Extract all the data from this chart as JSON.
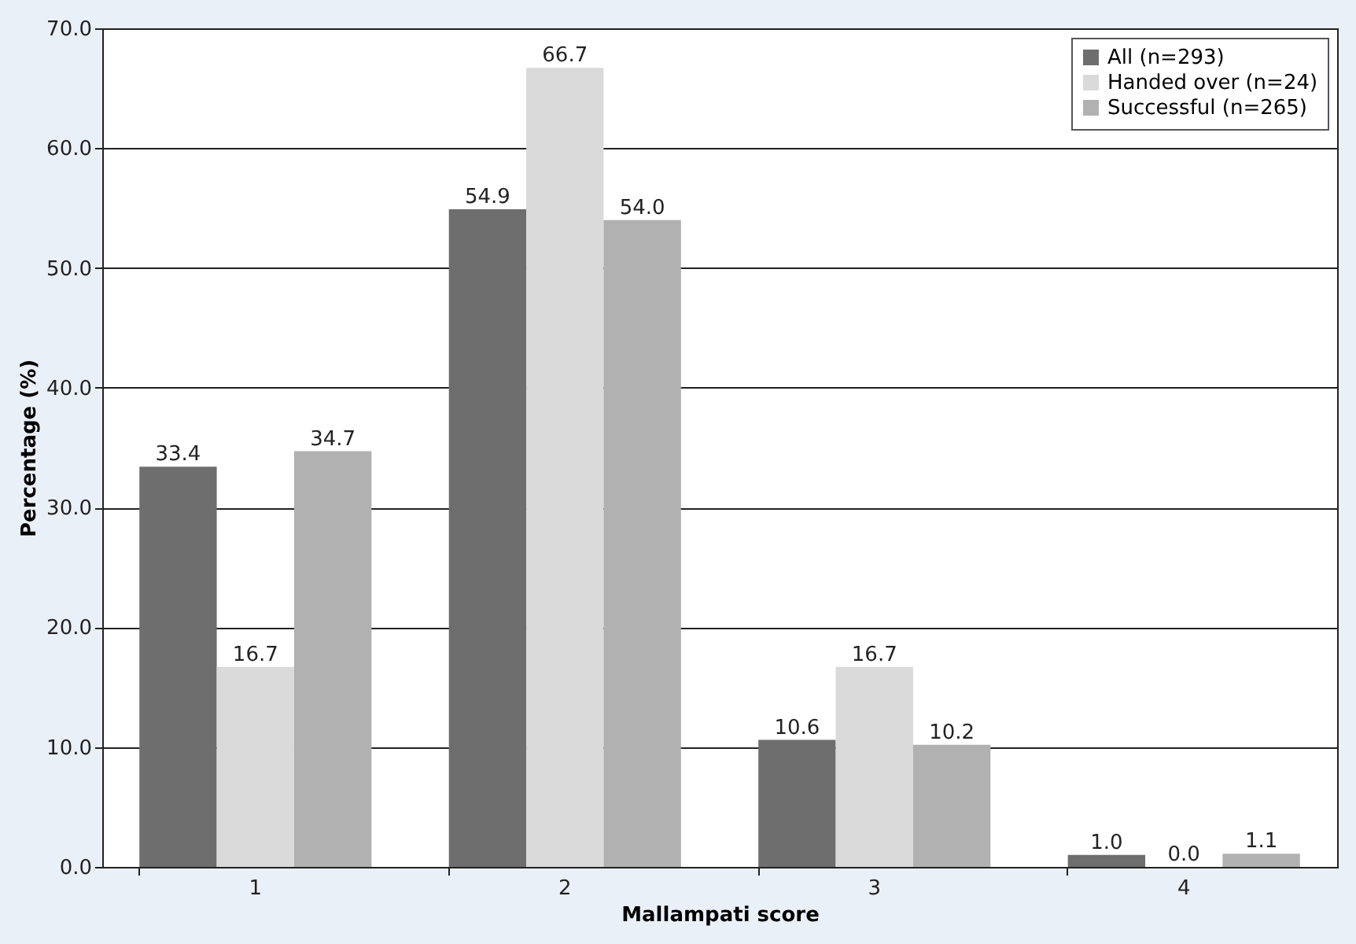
{
  "chart_data": {
    "type": "bar",
    "xlabel": "Mallampati score",
    "ylabel": "Percentage (%)",
    "categories": [
      "1",
      "2",
      "3",
      "4"
    ],
    "series": [
      {
        "name": "All (n=293)",
        "color": "#6e6e6e",
        "values": [
          33.4,
          54.9,
          10.6,
          1
        ],
        "value_labels": [
          "33.4",
          "54.9",
          "10.6",
          "1.0"
        ]
      },
      {
        "name": "Handed over (n=24)",
        "color": "#dadada",
        "values": [
          16.7,
          66.7,
          16.7,
          0
        ],
        "value_labels": [
          "16.7",
          "66.7",
          "16.7",
          "0.0"
        ]
      },
      {
        "name": "Successful (n=265)",
        "color": "#b1b1b1",
        "values": [
          34.7,
          54,
          10.2,
          1.1
        ],
        "value_labels": [
          "34.7",
          "54.0",
          "10.2",
          "1.1"
        ]
      }
    ],
    "ylim": [
      0,
      70
    ],
    "yticks": [
      {
        "value": 0,
        "label": "0.0"
      },
      {
        "value": 10,
        "label": "10.0"
      },
      {
        "value": 20,
        "label": "20.0"
      },
      {
        "value": 30,
        "label": "30.0"
      },
      {
        "value": 40,
        "label": "40.0"
      },
      {
        "value": 50,
        "label": "50.0"
      },
      {
        "value": 60,
        "label": "60.0"
      },
      {
        "value": 70,
        "label": "70.0"
      }
    ],
    "grid": "y",
    "legend": "top right"
  }
}
